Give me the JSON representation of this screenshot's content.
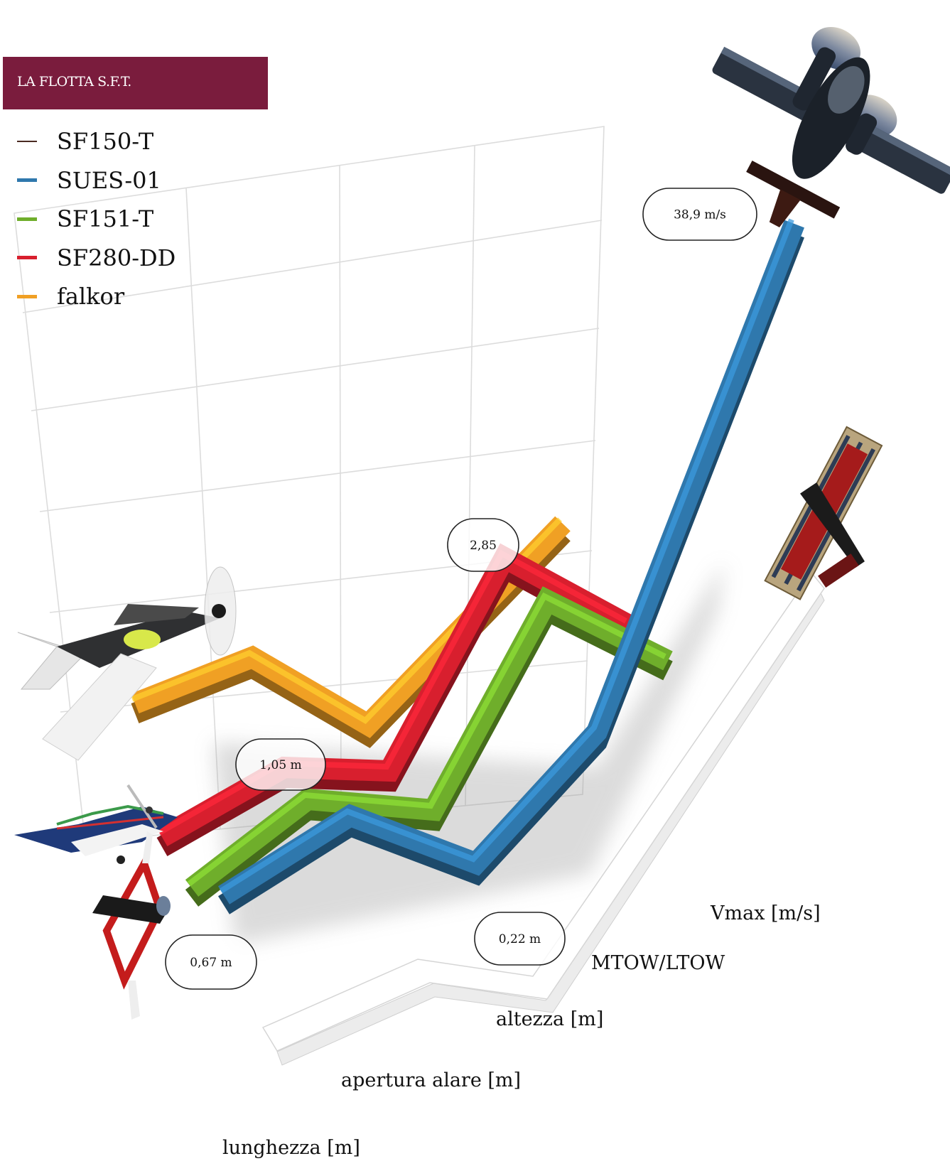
{
  "chart_data": {
    "type": "line",
    "title": "LA FLOTTA S.F.T.",
    "categories": [
      "lunghezza [m]",
      "apertura alare [m]",
      "altezza [m]",
      "MTOW/LTOW",
      "Vmax [m/s]"
    ],
    "legend_position": "top-left",
    "grid": true,
    "series": [
      {
        "name": "SF150-T",
        "color": "#4a2a22"
      },
      {
        "name": "SUES-01",
        "color": "#2f78ad"
      },
      {
        "name": "SF151-T",
        "color": "#6fae2b"
      },
      {
        "name": "SF280-DD",
        "color": "#d81f2e"
      },
      {
        "name": "falkor",
        "color": "#f0a024"
      }
    ],
    "annotations": [
      "38,9 m/s",
      "2,85",
      "1,05 m",
      "0,67 m",
      "0,22 m"
    ]
  },
  "icons": [
    "airplane-icon",
    "airplane-icon",
    "airplane-icon",
    "airplane-icon",
    "airplane-icon"
  ]
}
